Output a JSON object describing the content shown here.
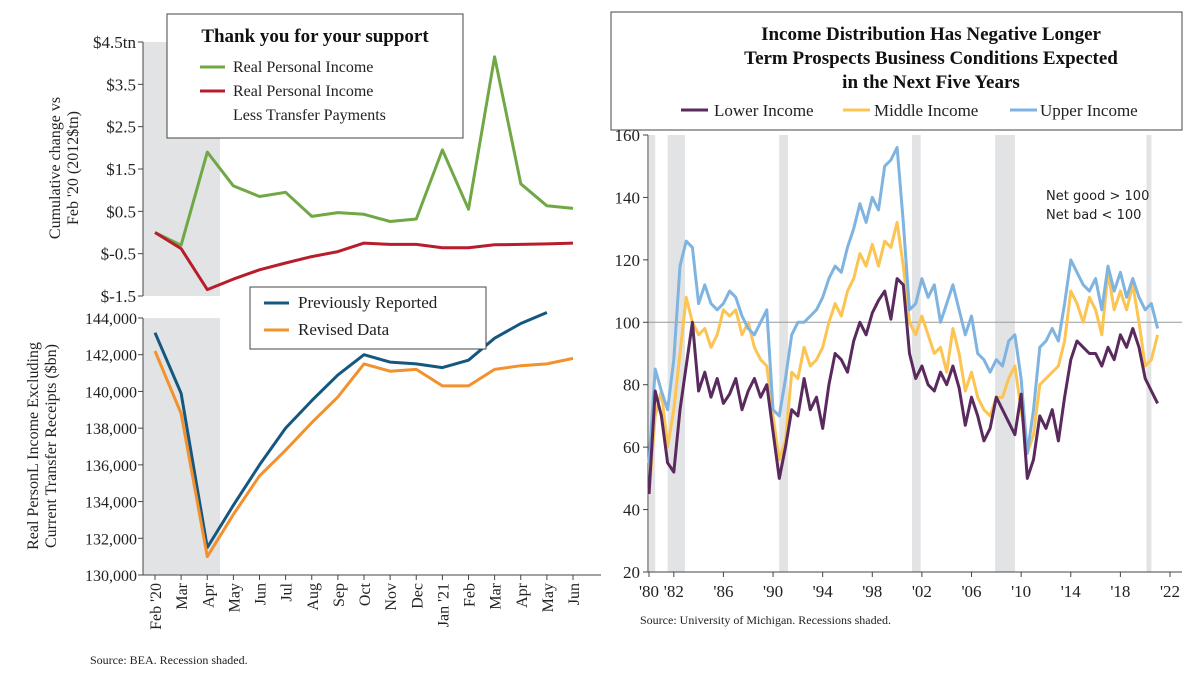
{
  "chart_data": [
    {
      "type": "line",
      "title": "Thank you for your support",
      "ylabel": "Cumulative change vs Feb '20 (2012$tn)",
      "ylabel_lines": [
        "Cumulative change vs",
        "Feb '20 (2012$tn)"
      ],
      "ylim": [
        -1.5,
        4.5
      ],
      "yticks": [
        {
          "value": 4.5,
          "label": "$4.5tn"
        },
        {
          "value": 3.5,
          "label": "$3.5"
        },
        {
          "value": 2.5,
          "label": "$2.5"
        },
        {
          "value": 1.5,
          "label": "$1.5"
        },
        {
          "value": 0.5,
          "label": "$0.5"
        },
        {
          "value": -0.5,
          "label": "$-0.5"
        },
        {
          "value": -1.5,
          "label": "$-1.5"
        }
      ],
      "legend_position": "top",
      "recession": {
        "from_index": 0,
        "to_index": 2
      },
      "series": [
        {
          "name": "Real Personal Income",
          "legend_lines": [
            "Real Personal Income"
          ],
          "color": "#70a845",
          "values": [
            0.0,
            -0.3,
            1.9,
            1.1,
            0.85,
            0.95,
            0.38,
            0.47,
            0.43,
            0.26,
            0.32,
            1.95,
            0.55,
            4.15,
            1.15,
            0.63,
            0.57
          ]
        },
        {
          "name": "Real Personal Income Less Transfer Payments",
          "legend_lines": [
            "Real Personal Income",
            "Less Transfer Payments"
          ],
          "color": "#b81d2b",
          "values": [
            0.0,
            -0.38,
            -1.35,
            -1.1,
            -0.88,
            -0.72,
            -0.57,
            -0.45,
            -0.25,
            -0.28,
            -0.28,
            -0.36,
            -0.36,
            -0.29,
            -0.28,
            -0.27,
            -0.25
          ]
        }
      ]
    },
    {
      "type": "line",
      "ylabel": "Real PersonL Income Excluding Current Transfer Receipts ($bn)",
      "ylabel_lines": [
        "Real PersonL Income Excluding",
        "Current Transfer Receipts ($bn)"
      ],
      "ylim": [
        130000,
        144000
      ],
      "yticks": [
        {
          "value": 144000,
          "label": "144,000"
        },
        {
          "value": 142000,
          "label": "142,000"
        },
        {
          "value": 140000,
          "label": "140,000"
        },
        {
          "value": 138000,
          "label": "138,000"
        },
        {
          "value": 136000,
          "label": "136,000"
        },
        {
          "value": 134000,
          "label": "134,000"
        },
        {
          "value": 132000,
          "label": "132,000"
        },
        {
          "value": 130000,
          "label": "130,000"
        }
      ],
      "categories": [
        "Feb '20",
        "Mar",
        "Apr",
        "May",
        "Jun",
        "Jul",
        "Aug",
        "Sep",
        "Oct",
        "Nov",
        "Dec",
        "Jan '21",
        "Feb",
        "Mar",
        "Apr",
        "May",
        "Jun"
      ],
      "legend_position": "top-right",
      "recession": {
        "from_index": 0,
        "to_index": 2
      },
      "series": [
        {
          "name": "Previously Reported",
          "color": "#14577f",
          "values": [
            143200,
            139900,
            131500,
            133800,
            136000,
            138000,
            139500,
            140900,
            142000,
            141600,
            141500,
            141300,
            141700,
            142900,
            143700,
            144300,
            null
          ]
        },
        {
          "name": "Revised Data",
          "color": "#f2912e",
          "values": [
            142200,
            138800,
            131000,
            133300,
            135400,
            136800,
            138300,
            139700,
            141500,
            141100,
            141200,
            140300,
            140300,
            141200,
            141400,
            141500,
            141800
          ]
        }
      ],
      "source": "Source: BEA. Recession shaded."
    },
    {
      "type": "line",
      "title": "Income Distribution Has Negative Longer Term Prospects Business Conditions Expected in the Next Five Years",
      "title_lines": [
        "Income Distribution Has Negative Longer",
        "Term Prospects Business Conditions Expected",
        "in the Next Five Years"
      ],
      "ylim": [
        20,
        160
      ],
      "yticks": [
        160,
        140,
        120,
        100,
        80,
        60,
        40,
        20
      ],
      "xlim": [
        1980,
        2022
      ],
      "xticks": [
        {
          "value": 1980,
          "label": "'80"
        },
        {
          "value": 1982,
          "label": "'82"
        },
        {
          "value": 1986,
          "label": "'86"
        },
        {
          "value": 1990,
          "label": "'90"
        },
        {
          "value": 1994,
          "label": "'94"
        },
        {
          "value": 1998,
          "label": "'98"
        },
        {
          "value": 2002,
          "label": "'02"
        },
        {
          "value": 2006,
          "label": "'06"
        },
        {
          "value": 2010,
          "label": "'10"
        },
        {
          "value": 2014,
          "label": "'14"
        },
        {
          "value": 2018,
          "label": "'18"
        },
        {
          "value": 2022,
          "label": "'22"
        }
      ],
      "reference_line": 100,
      "annotations": [
        "Net good > 100",
        "Net bad < 100"
      ],
      "recessions": [
        [
          1980.0,
          1980.5
        ],
        [
          1981.5,
          1982.9
        ],
        [
          1990.5,
          1991.2
        ],
        [
          2001.2,
          2001.9
        ],
        [
          2007.9,
          2009.5
        ],
        [
          2020.1,
          2020.5
        ]
      ],
      "legend_position": "top",
      "x": [
        1980.0,
        1980.5,
        1981.0,
        1981.5,
        1982.0,
        1982.5,
        1983.0,
        1983.5,
        1984.0,
        1984.5,
        1985.0,
        1985.5,
        1986.0,
        1986.5,
        1987.0,
        1987.5,
        1988.0,
        1988.5,
        1989.0,
        1989.5,
        1990.0,
        1990.5,
        1991.0,
        1991.5,
        1992.0,
        1992.5,
        1993.0,
        1993.5,
        1994.0,
        1994.5,
        1995.0,
        1995.5,
        1996.0,
        1996.5,
        1997.0,
        1997.5,
        1998.0,
        1998.5,
        1999.0,
        1999.5,
        2000.0,
        2000.5,
        2001.0,
        2001.5,
        2002.0,
        2002.5,
        2003.0,
        2003.5,
        2004.0,
        2004.5,
        2005.0,
        2005.5,
        2006.0,
        2006.5,
        2007.0,
        2007.5,
        2008.0,
        2008.5,
        2009.0,
        2009.5,
        2010.0,
        2010.5,
        2011.0,
        2011.5,
        2012.0,
        2012.5,
        2013.0,
        2013.5,
        2014.0,
        2014.5,
        2015.0,
        2015.5,
        2016.0,
        2016.5,
        2017.0,
        2017.5,
        2018.0,
        2018.5,
        2019.0,
        2019.5,
        2020.0,
        2020.5,
        2021.0
      ],
      "series": [
        {
          "name": "Lower Income",
          "color": "#5a2a5e",
          "values": [
            45,
            78,
            70,
            55,
            52,
            72,
            86,
            100,
            78,
            84,
            76,
            82,
            74,
            77,
            82,
            72,
            78,
            82,
            76,
            80,
            65,
            50,
            60,
            72,
            70,
            82,
            72,
            76,
            66,
            80,
            90,
            88,
            84,
            94,
            100,
            96,
            103,
            107,
            110,
            101,
            114,
            112,
            90,
            82,
            86,
            80,
            78,
            84,
            80,
            86,
            79,
            67,
            76,
            70,
            62,
            66,
            76,
            72,
            68,
            64,
            77,
            50,
            56,
            70,
            66,
            72,
            62,
            76,
            88,
            94,
            92,
            90,
            90,
            86,
            92,
            88,
            96,
            92,
            98,
            92,
            82,
            78,
            74
          ]
        },
        {
          "name": "Middle Income",
          "color": "#fbc453",
          "values": [
            45,
            70,
            78,
            60,
            72,
            90,
            108,
            100,
            96,
            98,
            92,
            96,
            104,
            102,
            104,
            96,
            100,
            92,
            88,
            86,
            70,
            56,
            62,
            84,
            82,
            92,
            86,
            88,
            92,
            100,
            106,
            102,
            110,
            114,
            122,
            118,
            125,
            118,
            126,
            124,
            132,
            118,
            100,
            96,
            102,
            96,
            90,
            92,
            84,
            98,
            90,
            78,
            84,
            76,
            72,
            70,
            76,
            76,
            82,
            86,
            72,
            58,
            64,
            80,
            82,
            84,
            86,
            94,
            110,
            106,
            100,
            108,
            104,
            96,
            116,
            104,
            110,
            104,
            112,
            100,
            86,
            88,
            96
          ]
        },
        {
          "name": "Upper Income",
          "color": "#7fb3e0",
          "values": [
            55,
            85,
            78,
            72,
            88,
            118,
            126,
            124,
            106,
            112,
            106,
            104,
            106,
            110,
            108,
            102,
            98,
            96,
            100,
            104,
            72,
            70,
            82,
            96,
            100,
            100,
            102,
            104,
            108,
            114,
            118,
            116,
            124,
            130,
            138,
            132,
            140,
            136,
            150,
            152,
            156,
            132,
            104,
            106,
            114,
            108,
            112,
            100,
            106,
            112,
            104,
            96,
            102,
            90,
            88,
            84,
            88,
            86,
            94,
            96,
            82,
            58,
            72,
            92,
            94,
            98,
            94,
            106,
            120,
            116,
            112,
            110,
            114,
            104,
            118,
            110,
            116,
            108,
            114,
            108,
            104,
            106,
            98
          ]
        }
      ],
      "source": "Source: University of Michigan. Recessions shaded."
    }
  ]
}
